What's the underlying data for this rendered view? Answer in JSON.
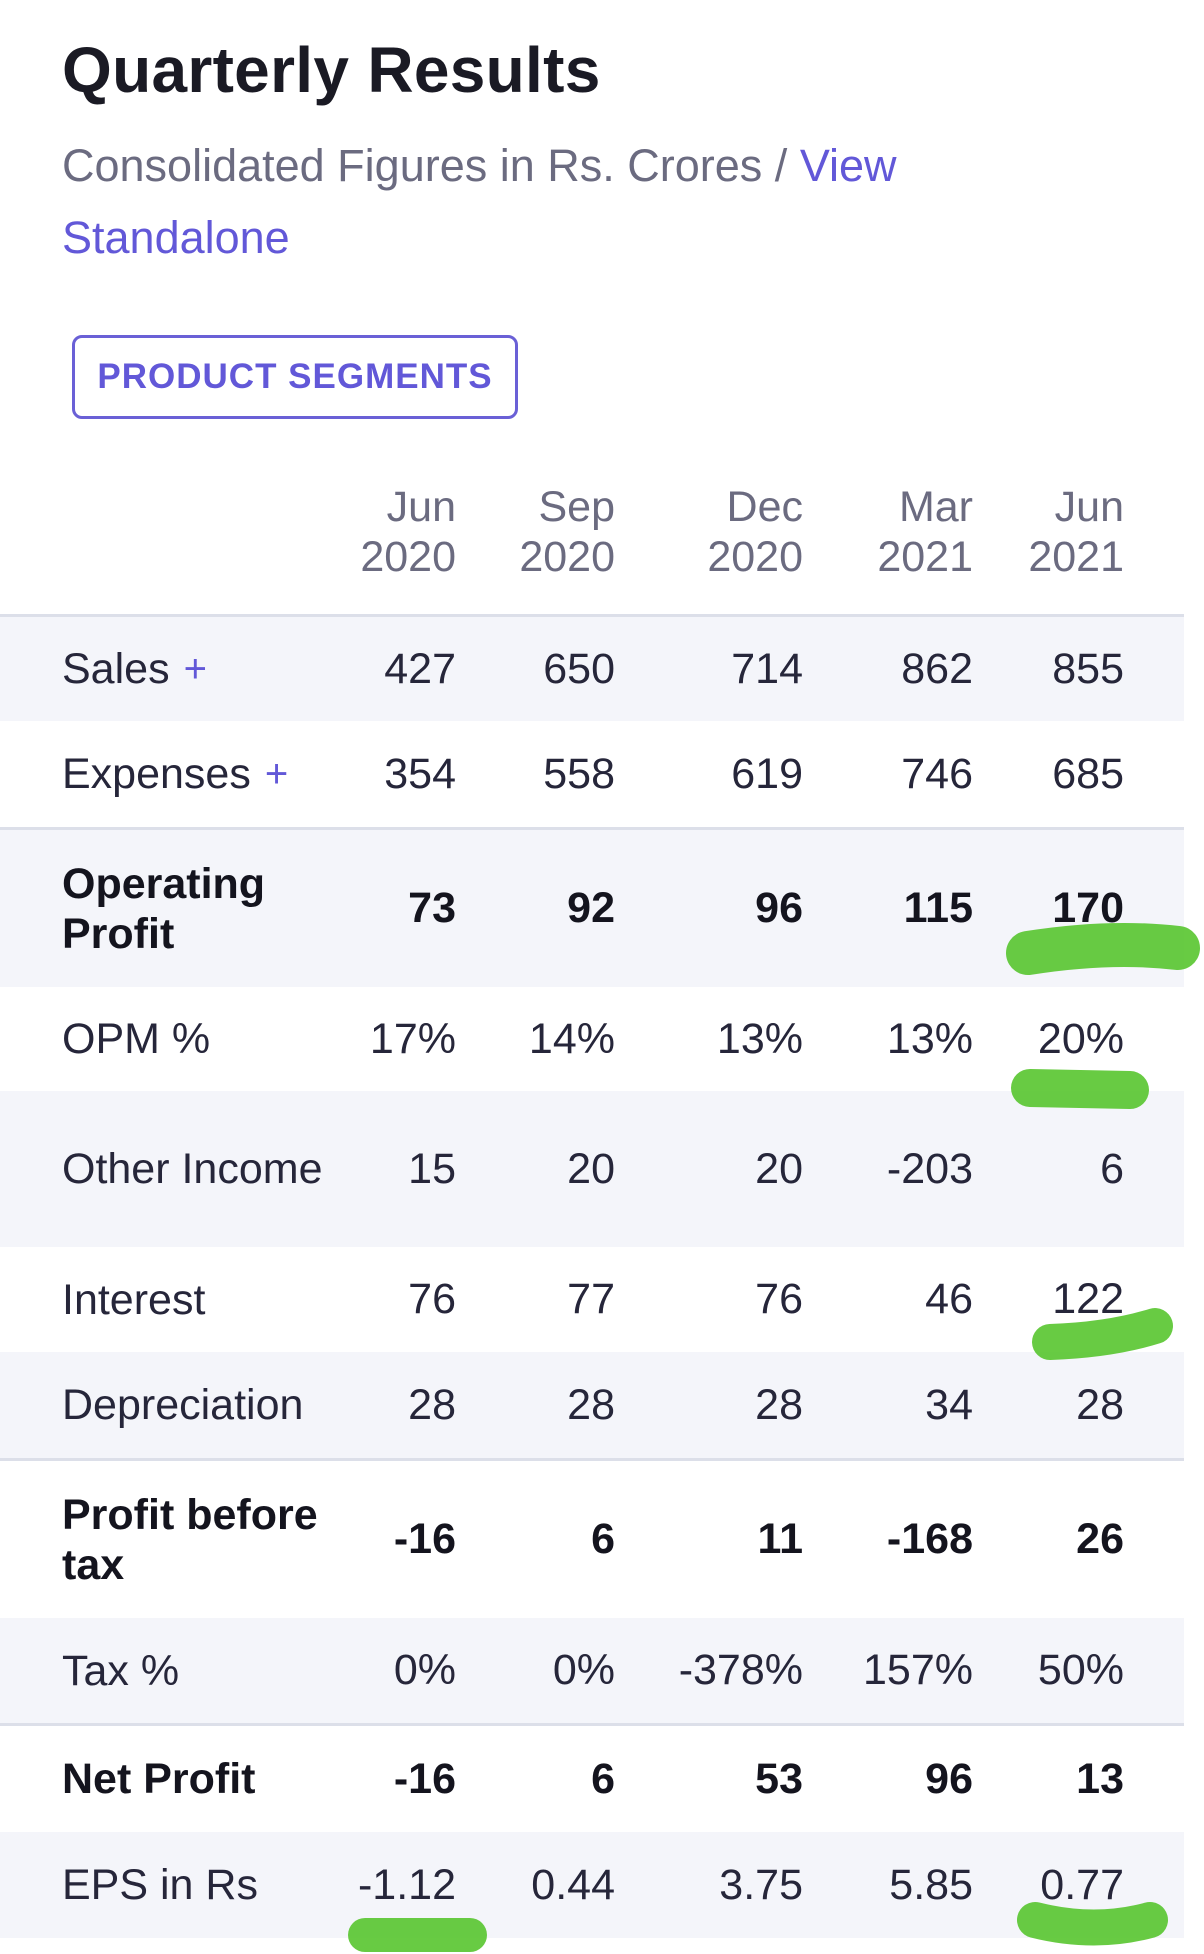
{
  "header": {
    "title": "Quarterly Results",
    "subtitle_prefix": "Consolidated Figures in Rs. Crores /",
    "view_standalone_link": "View Standalone",
    "segments_button": "PRODUCT SEGMENTS"
  },
  "periods": [
    {
      "month": "Jun",
      "year": "2020"
    },
    {
      "month": "Sep",
      "year": "2020"
    },
    {
      "month": "Dec",
      "year": "2020"
    },
    {
      "month": "Mar",
      "year": "2021"
    },
    {
      "month": "Jun",
      "year": "2021"
    }
  ],
  "rows": [
    {
      "label": "Sales",
      "expandable": true,
      "bold": false,
      "values": [
        "427",
        "650",
        "714",
        "862",
        "855"
      ]
    },
    {
      "label": "Expenses",
      "expandable": true,
      "bold": false,
      "values": [
        "354",
        "558",
        "619",
        "746",
        "685"
      ]
    },
    {
      "label": "Operating Profit",
      "expandable": false,
      "bold": true,
      "values": [
        "73",
        "92",
        "96",
        "115",
        "170"
      ]
    },
    {
      "label": "OPM %",
      "expandable": false,
      "bold": false,
      "values": [
        "17%",
        "14%",
        "13%",
        "13%",
        "20%"
      ]
    },
    {
      "label": "Other Income",
      "expandable": false,
      "bold": false,
      "values": [
        "15",
        "20",
        "20",
        "-203",
        "6"
      ]
    },
    {
      "label": "Interest",
      "expandable": false,
      "bold": false,
      "values": [
        "76",
        "77",
        "76",
        "46",
        "122"
      ]
    },
    {
      "label": "Depreciation",
      "expandable": false,
      "bold": false,
      "values": [
        "28",
        "28",
        "28",
        "34",
        "28"
      ]
    },
    {
      "label": "Profit before tax",
      "expandable": false,
      "bold": true,
      "values": [
        "-16",
        "6",
        "11",
        "-168",
        "26"
      ]
    },
    {
      "label": "Tax %",
      "expandable": false,
      "bold": false,
      "values": [
        "0%",
        "0%",
        "-378%",
        "157%",
        "50%"
      ]
    },
    {
      "label": "Net Profit",
      "expandable": false,
      "bold": true,
      "values": [
        "-16",
        "6",
        "53",
        "96",
        "13"
      ]
    },
    {
      "label": "EPS in Rs",
      "expandable": false,
      "bold": false,
      "values": [
        "-1.12",
        "0.44",
        "3.75",
        "5.85",
        "0.77"
      ]
    }
  ],
  "plus_symbol": "+",
  "highlight_color": "#58c52f"
}
